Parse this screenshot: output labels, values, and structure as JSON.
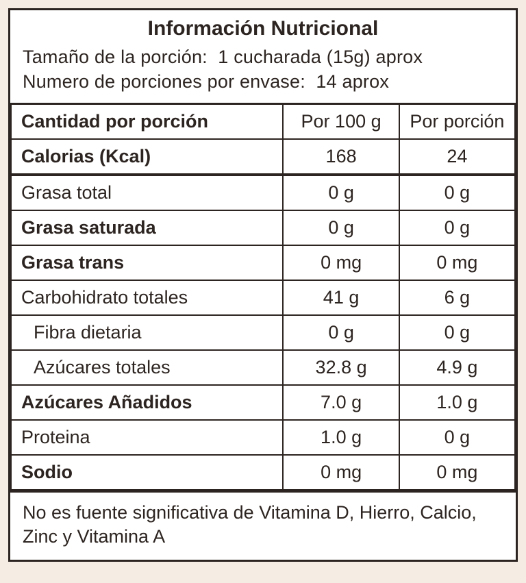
{
  "colors": {
    "text": "#2c2420",
    "background_page": "#f5ede4",
    "background_panel": "#ffffff",
    "border": "#2c2420"
  },
  "typography": {
    "title_fontsize": 30,
    "body_fontsize": 27,
    "font_family": "Arial, Helvetica, sans-serif"
  },
  "header": {
    "title": "Información Nutricional",
    "serving_size_label": "Tamaño de la porción:",
    "serving_size_value": "1 cucharada (15g) aprox",
    "servings_per_container_label": "Numero de porciones por envase:",
    "servings_per_container_value": "14 aprox"
  },
  "columns": {
    "label_header": "Cantidad por porción",
    "per_100g_header": "Por 100 g",
    "per_serving_header": "Por porción"
  },
  "rows": [
    {
      "label": "Calorias (Kcal)",
      "per_100g": "168",
      "per_serving": "24",
      "bold": true,
      "indent": false,
      "calories": true
    },
    {
      "label": "Grasa total",
      "per_100g": "0 g",
      "per_serving": "0 g",
      "bold": false,
      "indent": false
    },
    {
      "label": "Grasa saturada",
      "per_100g": "0 g",
      "per_serving": "0 g",
      "bold": true,
      "indent": false
    },
    {
      "label": "Grasa trans",
      "per_100g": "0 mg",
      "per_serving": "0 mg",
      "bold": true,
      "indent": false
    },
    {
      "label": "Carbohidrato totales",
      "per_100g": "41 g",
      "per_serving": "6 g",
      "bold": false,
      "indent": false
    },
    {
      "label": "Fibra dietaria",
      "per_100g": "0 g",
      "per_serving": "0 g",
      "bold": false,
      "indent": true
    },
    {
      "label": "Azúcares totales",
      "per_100g": "32.8 g",
      "per_serving": "4.9 g",
      "bold": false,
      "indent": true
    },
    {
      "label": "Azúcares Añadidos",
      "per_100g": "7.0 g",
      "per_serving": "1.0 g",
      "bold": true,
      "indent": false
    },
    {
      "label": "Proteina",
      "per_100g": "1.0 g",
      "per_serving": "0 g",
      "bold": false,
      "indent": false
    },
    {
      "label": "Sodio",
      "per_100g": "0 mg",
      "per_serving": "0 mg",
      "bold": true,
      "indent": false
    }
  ],
  "footer": {
    "text": "No es fuente significativa de Vitamina D, Hierro, Calcio, Zinc y Vitamina A"
  }
}
